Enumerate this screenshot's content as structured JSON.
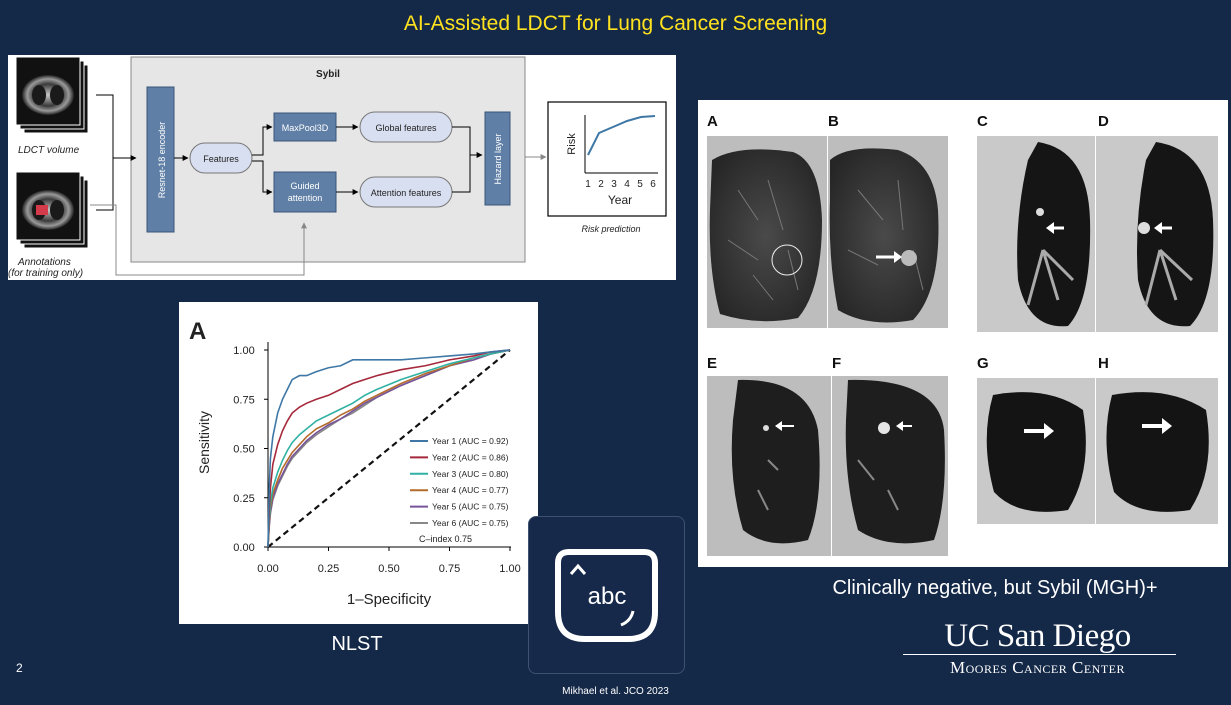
{
  "slide": {
    "title": "AI-Assisted LDCT for Lung Cancer Screening",
    "number": "2",
    "citation": "Mikhael et al.  JCO 2023",
    "nlst_caption": "NLST",
    "sybil_caption": "Clinically negative, but Sybil (MGH)+",
    "logo_name": "UC San Diego",
    "logo_subtitle": "Moores Cancer Center"
  },
  "diagram": {
    "ldct_label": "LDCT volume",
    "annotations_label_1": "Annotations",
    "annotations_label_2": "(for training only)",
    "sybil_label": "Sybil",
    "encoder_label": "Resnet-18 encoder",
    "features_label": "Features",
    "maxpool_label": "MaxPool3D",
    "guided_label_1": "Guided",
    "guided_label_2": "attention",
    "global_label": "Global features",
    "attention_label": "Attention features",
    "hazard_label": "Hazard layer",
    "risk_axis_label": "Risk",
    "year_axis_label": "Year",
    "year_ticks": [
      "1",
      "2",
      "3",
      "4",
      "5",
      "6"
    ],
    "risk_prediction_label": "Risk prediction"
  },
  "ct_panel": {
    "letters": [
      "A",
      "B",
      "C",
      "D",
      "E",
      "F",
      "G",
      "H"
    ]
  },
  "overlay": {
    "text": "abc",
    "icon": "keyboard-abc-icon"
  },
  "colors": {
    "background": "#142848",
    "title": "#ffe21f",
    "year1": "#3f78a6",
    "year2": "#a5283b",
    "year3": "#2fb1a3",
    "year4": "#b36b2b",
    "year5": "#77539b",
    "year6": "#888888"
  },
  "chart_data": {
    "type": "line",
    "panel_label": "A",
    "xlabel": "1–Specificity",
    "ylabel": "Sensitivity",
    "xlim": [
      0,
      1
    ],
    "ylim": [
      0,
      1
    ],
    "x_ticks": [
      "0.00",
      "0.25",
      "0.50",
      "0.75",
      "1.00"
    ],
    "y_ticks": [
      "0.00",
      "0.25",
      "0.50",
      "0.75",
      "1.00"
    ],
    "annotation": "C–index  0.75",
    "series": [
      {
        "name": "Year 1 (AUC = 0.92)",
        "color": "#3f78a6",
        "x": [
          0,
          0.005,
          0.01,
          0.02,
          0.04,
          0.06,
          0.08,
          0.1,
          0.13,
          0.16,
          0.2,
          0.25,
          0.3,
          0.35,
          0.4,
          0.45,
          0.55,
          0.65,
          0.75,
          0.85,
          0.92,
          1.0
        ],
        "y": [
          0,
          0.3,
          0.45,
          0.56,
          0.68,
          0.75,
          0.8,
          0.85,
          0.87,
          0.87,
          0.89,
          0.91,
          0.92,
          0.95,
          0.95,
          0.95,
          0.95,
          0.96,
          0.97,
          0.98,
          0.99,
          1.0
        ]
      },
      {
        "name": "Year 2 (AUC = 0.86)",
        "color": "#a5283b",
        "x": [
          0,
          0.005,
          0.01,
          0.02,
          0.04,
          0.06,
          0.08,
          0.1,
          0.13,
          0.16,
          0.2,
          0.25,
          0.3,
          0.35,
          0.4,
          0.45,
          0.55,
          0.65,
          0.75,
          0.85,
          0.92,
          1.0
        ],
        "y": [
          0,
          0.18,
          0.3,
          0.42,
          0.52,
          0.59,
          0.64,
          0.68,
          0.71,
          0.73,
          0.75,
          0.77,
          0.8,
          0.83,
          0.85,
          0.87,
          0.9,
          0.92,
          0.95,
          0.97,
          0.99,
          1.0
        ]
      },
      {
        "name": "Year 3 (AUC = 0.80)",
        "color": "#2fb1a3",
        "x": [
          0,
          0.005,
          0.01,
          0.02,
          0.04,
          0.06,
          0.08,
          0.1,
          0.13,
          0.16,
          0.2,
          0.25,
          0.3,
          0.35,
          0.4,
          0.45,
          0.55,
          0.65,
          0.75,
          0.85,
          0.92,
          1.0
        ],
        "y": [
          0,
          0.14,
          0.22,
          0.3,
          0.38,
          0.44,
          0.49,
          0.53,
          0.57,
          0.6,
          0.64,
          0.67,
          0.7,
          0.73,
          0.77,
          0.8,
          0.85,
          0.89,
          0.93,
          0.96,
          0.98,
          1.0
        ]
      },
      {
        "name": "Year 4 (AUC = 0.77)",
        "color": "#b36b2b",
        "x": [
          0,
          0.005,
          0.01,
          0.02,
          0.04,
          0.06,
          0.08,
          0.1,
          0.13,
          0.16,
          0.2,
          0.25,
          0.3,
          0.35,
          0.4,
          0.45,
          0.55,
          0.65,
          0.75,
          0.85,
          0.92,
          1.0
        ],
        "y": [
          0,
          0.12,
          0.2,
          0.27,
          0.34,
          0.4,
          0.44,
          0.48,
          0.52,
          0.56,
          0.6,
          0.63,
          0.67,
          0.7,
          0.74,
          0.77,
          0.83,
          0.88,
          0.92,
          0.96,
          0.98,
          1.0
        ]
      },
      {
        "name": "Year 5 (AUC = 0.75)",
        "color": "#77539b",
        "x": [
          0,
          0.005,
          0.01,
          0.02,
          0.04,
          0.06,
          0.08,
          0.1,
          0.13,
          0.16,
          0.2,
          0.25,
          0.3,
          0.35,
          0.4,
          0.45,
          0.55,
          0.65,
          0.75,
          0.85,
          0.92,
          1.0
        ],
        "y": [
          0,
          0.11,
          0.18,
          0.25,
          0.32,
          0.37,
          0.42,
          0.46,
          0.5,
          0.54,
          0.58,
          0.62,
          0.65,
          0.69,
          0.73,
          0.76,
          0.82,
          0.87,
          0.92,
          0.95,
          0.98,
          1.0
        ]
      },
      {
        "name": "Year 6 (AUC = 0.75)",
        "color": "#888888",
        "x": [
          0,
          0.005,
          0.01,
          0.02,
          0.04,
          0.06,
          0.08,
          0.1,
          0.13,
          0.16,
          0.2,
          0.25,
          0.3,
          0.35,
          0.4,
          0.45,
          0.55,
          0.65,
          0.75,
          0.85,
          0.92,
          1.0
        ],
        "y": [
          0,
          0.1,
          0.17,
          0.24,
          0.31,
          0.36,
          0.41,
          0.45,
          0.49,
          0.53,
          0.57,
          0.61,
          0.65,
          0.68,
          0.72,
          0.76,
          0.82,
          0.87,
          0.92,
          0.95,
          0.98,
          1.0
        ]
      }
    ],
    "reference_line": {
      "x": [
        0,
        1
      ],
      "y": [
        0,
        1
      ],
      "style": "dashed"
    }
  }
}
